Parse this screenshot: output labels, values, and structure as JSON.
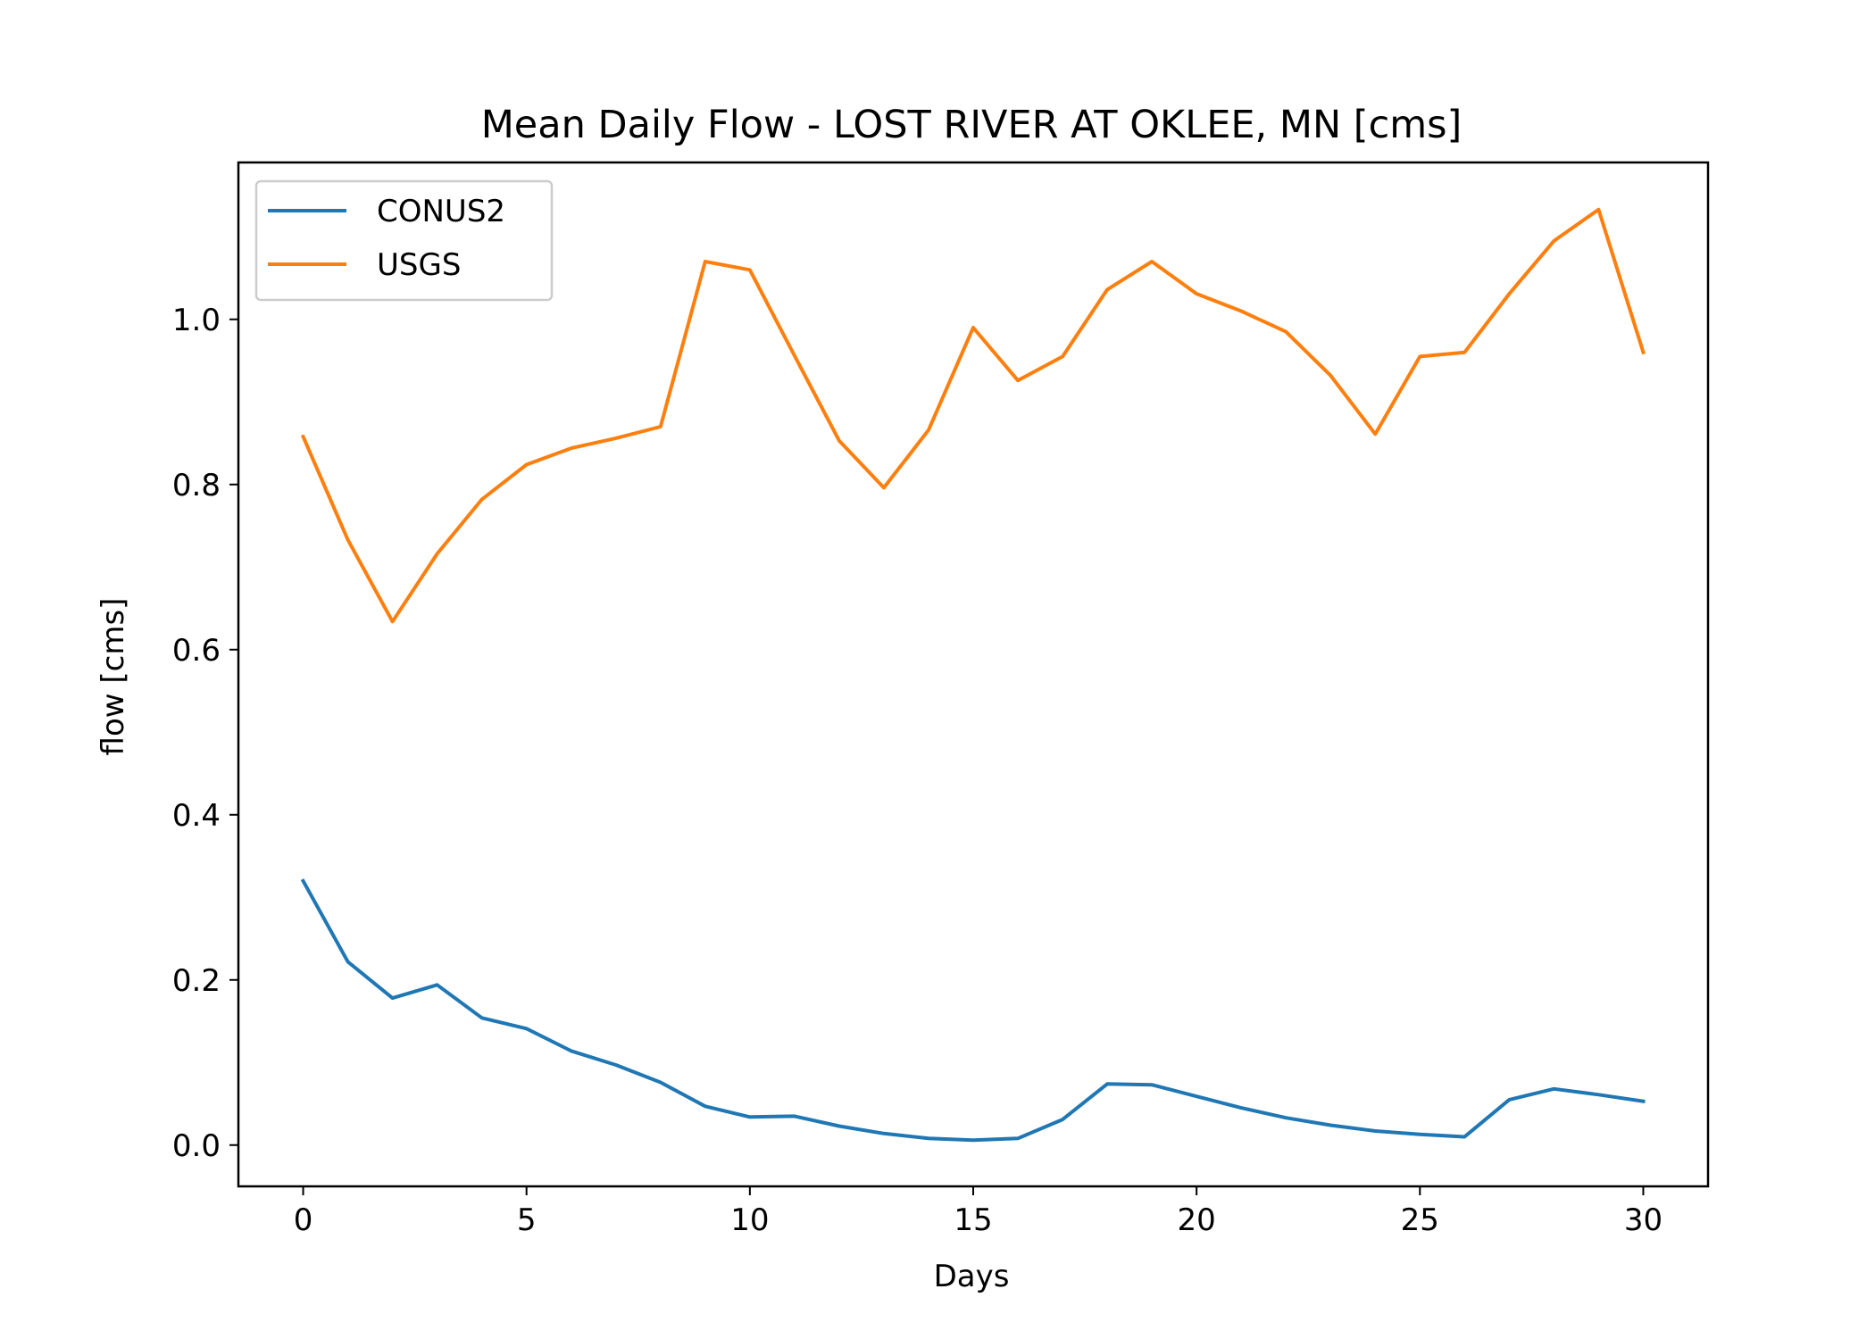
{
  "chart_data": {
    "type": "line",
    "title": "Mean Daily Flow - LOST RIVER AT OKLEE, MN [cms]",
    "xlabel": "Days",
    "ylabel": "flow [cms]",
    "xlim": [
      -1.45,
      31.45
    ],
    "ylim": [
      -0.05,
      1.19
    ],
    "xticks": [
      0,
      5,
      10,
      15,
      20,
      25,
      30
    ],
    "xtick_labels": [
      "0",
      "5",
      "10",
      "15",
      "20",
      "25",
      "30"
    ],
    "yticks": [
      0.0,
      0.2,
      0.4,
      0.6,
      0.8,
      1.0
    ],
    "ytick_labels": [
      "0.0",
      "0.2",
      "0.4",
      "0.6",
      "0.8",
      "1.0"
    ],
    "grid": false,
    "legend_position": "top-left",
    "x": [
      0,
      1,
      2,
      3,
      4,
      5,
      6,
      7,
      8,
      9,
      10,
      11,
      12,
      13,
      14,
      15,
      16,
      17,
      18,
      19,
      20,
      21,
      22,
      23,
      24,
      25,
      26,
      27,
      28,
      29,
      30
    ],
    "series": [
      {
        "name": "CONUS2",
        "color": "#1f77b4",
        "values": [
          0.32,
          0.222,
          0.178,
          0.194,
          0.154,
          0.141,
          0.114,
          0.097,
          0.076,
          0.047,
          0.034,
          0.035,
          0.023,
          0.014,
          0.008,
          0.006,
          0.008,
          0.031,
          0.074,
          0.073,
          0.059,
          0.045,
          0.033,
          0.024,
          0.017,
          0.013,
          0.01,
          0.055,
          0.068,
          0.061,
          0.053
        ]
      },
      {
        "name": "USGS",
        "color": "#ff7f0e",
        "values": [
          0.858,
          0.733,
          0.634,
          0.716,
          0.782,
          0.824,
          0.844,
          0.856,
          0.87,
          1.07,
          1.06,
          0.956,
          0.853,
          0.796,
          0.866,
          0.99,
          0.926,
          0.955,
          1.036,
          1.07,
          1.031,
          1.01,
          0.985,
          0.932,
          0.861,
          0.955,
          0.96,
          1.031,
          1.095,
          1.133,
          0.96
        ]
      }
    ]
  }
}
